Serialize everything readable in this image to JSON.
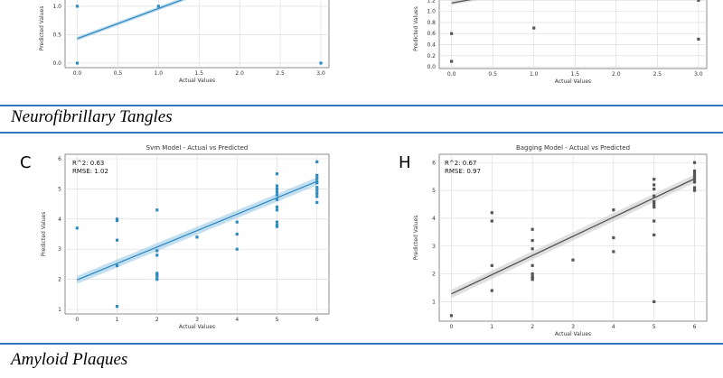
{
  "sections": {
    "tangles": "Neurofibrillary Tangles",
    "plaques": "Amyloid Plaques"
  },
  "chart_data": [
    {
      "id": "top-left",
      "type": "scatter",
      "color": "#2e8bc0",
      "band": "#9cc9e6",
      "title": "",
      "xlabel": "Actual Values",
      "ylabel": "Predicted Values",
      "xlim": [
        -0.15,
        3.1
      ],
      "ylim": [
        -0.08,
        1.3
      ],
      "xticks": [
        0.0,
        0.5,
        1.0,
        1.5,
        2.0,
        2.5,
        3.0
      ],
      "yticks": [
        0.0,
        0.5,
        1.0
      ],
      "x": [
        0,
        0,
        1,
        3
      ],
      "y": [
        1.0,
        0.0,
        1.0,
        0.0
      ],
      "fit": [
        0.43,
        0.53
      ],
      "stats": []
    },
    {
      "id": "top-right",
      "type": "scatter",
      "color": "#555555",
      "band": "#cccccc",
      "title": "",
      "xlabel": "Actual Values",
      "ylabel": "Predicted Values",
      "xlim": [
        -0.15,
        3.1
      ],
      "ylim": [
        -0.03,
        1.4
      ],
      "xticks": [
        0.0,
        0.5,
        1.0,
        1.5,
        2.0,
        2.5,
        3.0
      ],
      "yticks": [
        0.0,
        0.2,
        0.4,
        0.6,
        0.8,
        1.0,
        1.2
      ],
      "x": [
        0,
        0,
        1,
        3,
        3,
        3
      ],
      "y": [
        0.6,
        0.1,
        0.7,
        1.3,
        1.2,
        0.5
      ],
      "fit": [
        1.15,
        0.27
      ],
      "stats": []
    },
    {
      "id": "C",
      "type": "scatter",
      "color": "#2e8bc0",
      "band": "#9cc9e6",
      "title": "Svm   Model - Actual vs Predicted",
      "xlabel": "Actual Values",
      "ylabel": "Predicted Values",
      "xlim": [
        -0.3,
        6.3
      ],
      "ylim": [
        0.85,
        6.15
      ],
      "xticks": [
        0,
        1,
        2,
        3,
        4,
        5,
        6
      ],
      "yticks": [
        1,
        2,
        3,
        4,
        5,
        6
      ],
      "x": [
        0,
        1,
        1,
        1,
        1,
        1,
        2,
        2,
        2,
        2,
        2,
        2,
        2,
        3,
        4,
        4,
        4,
        5,
        5,
        5,
        5,
        5,
        5,
        5,
        5,
        5,
        5,
        5,
        6,
        6,
        6,
        6,
        6,
        6,
        6,
        6,
        6,
        6
      ],
      "y": [
        3.7,
        4.0,
        3.95,
        3.3,
        2.45,
        1.1,
        4.3,
        2.95,
        2.8,
        2.2,
        2.1,
        2.0,
        2.15,
        3.4,
        3.9,
        3.5,
        3.0,
        5.5,
        5.1,
        5.0,
        4.9,
        4.65,
        4.4,
        4.3,
        3.9,
        3.8,
        3.75,
        4.8,
        5.9,
        5.45,
        5.35,
        5.25,
        5.2,
        5.05,
        4.95,
        4.85,
        4.75,
        4.55
      ],
      "fit": [
        1.98,
        0.545
      ],
      "stats": [
        "R^2: 0.63",
        "RMSE: 1.02"
      ]
    },
    {
      "id": "H",
      "type": "scatter",
      "color": "#555555",
      "band": "#cccccc",
      "title": "Bagging   Model - Actual vs Predicted",
      "xlabel": "Actual Values",
      "ylabel": "Predicted Values",
      "xlim": [
        -0.3,
        6.3
      ],
      "ylim": [
        0.3,
        6.3
      ],
      "xticks": [
        0,
        1,
        2,
        3,
        4,
        5,
        6
      ],
      "yticks": [
        1,
        2,
        3,
        4,
        5,
        6
      ],
      "x": [
        0,
        1,
        1,
        1,
        1,
        2,
        2,
        2,
        2,
        2,
        2,
        2,
        2,
        3,
        4,
        4,
        4,
        5,
        5,
        5,
        5,
        5,
        5,
        5,
        5,
        5,
        5,
        6,
        6,
        6,
        6,
        6,
        6,
        6,
        6
      ],
      "y": [
        0.5,
        4.2,
        3.9,
        2.3,
        1.4,
        3.6,
        3.2,
        2.9,
        2.3,
        2.0,
        1.9,
        1.85,
        1.8,
        2.5,
        4.3,
        3.3,
        2.8,
        5.4,
        5.2,
        5.05,
        4.8,
        4.6,
        4.5,
        4.4,
        3.9,
        3.4,
        1.0,
        6.0,
        5.7,
        5.6,
        5.5,
        5.4,
        5.3,
        5.1,
        5.0
      ],
      "fit": [
        1.28,
        0.69
      ],
      "stats": [
        "R^2: 0.67",
        "RMSE: 0.97"
      ]
    }
  ],
  "panel_letters": {
    "C": "C",
    "H": "H"
  }
}
